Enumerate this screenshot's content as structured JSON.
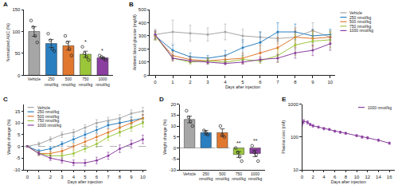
{
  "chart_data": [
    {
      "panel": "A",
      "type": "bar",
      "categories": [
        "Vehicle",
        "250 nmol/kg",
        "500 nmol/kg",
        "750 nmol/kg",
        "1000 nmol/kg"
      ],
      "values": [
        100,
        72.5,
        67.5,
        48,
        40
      ],
      "errors": [
        11,
        9,
        10,
        7,
        2
      ],
      "points": [
        [
          125,
          110,
          90,
          75
        ],
        [
          95,
          80,
          60,
          55
        ],
        [
          90,
          75,
          60,
          45
        ],
        [
          65,
          50,
          42,
          35
        ],
        [
          45,
          42,
          38,
          35
        ]
      ],
      "colors": [
        "#a6a6a6",
        "#2a7fc0",
        "#e0782f",
        "#9cc63a",
        "#8b3fa0"
      ],
      "y_label": "Normalized AUC (%)",
      "ylim": [
        0,
        150
      ],
      "yticks": [
        0,
        50,
        100,
        150
      ],
      "annotations": [
        {
          "category": "750 nmol/kg",
          "text": "*"
        },
        {
          "category": "1000 nmol/kg",
          "text": "*"
        }
      ],
      "grid": false
    },
    {
      "panel": "B",
      "type": "line",
      "x_label": "Days after injection",
      "y_label": "Ambient blood glucose (mg/dl)",
      "x": [
        0,
        1,
        2,
        3,
        4,
        5,
        6,
        7,
        8,
        9,
        10
      ],
      "xlim": [
        -0.3,
        10.3
      ],
      "xticks": [
        0,
        1,
        2,
        3,
        4,
        5,
        6,
        7,
        8,
        9,
        10
      ],
      "ylim": [
        0,
        500
      ],
      "yticks": [
        0,
        100,
        200,
        300,
        400,
        500
      ],
      "legend": "right",
      "marker": "circle",
      "grid": false,
      "series": [
        {
          "name": "Vehicle",
          "color": "#a6a6a6",
          "values": [
            310,
            330,
            320,
            310,
            330,
            300,
            290,
            280,
            290,
            340,
            290
          ],
          "errors": [
            40,
            90,
            60,
            50,
            60,
            50,
            40,
            40,
            50,
            60,
            50
          ]
        },
        {
          "name": "250 nmol/kg",
          "color": "#2a7fc0",
          "values": [
            300,
            190,
            140,
            130,
            150,
            210,
            250,
            330,
            330,
            300,
            310
          ],
          "errors": [
            30,
            40,
            30,
            20,
            40,
            60,
            80,
            70,
            60,
            50,
            40
          ]
        },
        {
          "name": "500 nmol/kg",
          "color": "#e0782f",
          "values": [
            300,
            150,
            120,
            110,
            120,
            130,
            170,
            210,
            290,
            280,
            290
          ],
          "errors": [
            30,
            30,
            20,
            20,
            30,
            40,
            60,
            80,
            70,
            60,
            40
          ]
        },
        {
          "name": "750 nmol/kg",
          "color": "#9cc63a",
          "values": [
            300,
            130,
            100,
            110,
            100,
            120,
            110,
            150,
            230,
            260,
            270
          ],
          "errors": [
            30,
            20,
            15,
            20,
            15,
            25,
            20,
            50,
            80,
            70,
            60
          ]
        },
        {
          "name": "1000 nmol/kg",
          "color": "#8b3fa0",
          "values": [
            310,
            130,
            110,
            100,
            90,
            100,
            120,
            130,
            170,
            190,
            240
          ],
          "errors": [
            30,
            20,
            15,
            15,
            10,
            15,
            20,
            30,
            40,
            40,
            50
          ]
        }
      ]
    },
    {
      "panel": "C",
      "type": "line",
      "x_label": "Days after injection",
      "y_label": "Weight change (%)",
      "x": [
        0,
        1,
        2,
        3,
        4,
        5,
        6,
        7,
        8,
        9,
        10
      ],
      "xlim": [
        -0.3,
        10.3
      ],
      "xticks": [
        0,
        1,
        2,
        3,
        4,
        5,
        6,
        7,
        8,
        9,
        10
      ],
      "ylim": [
        -10,
        18
      ],
      "yticks": [
        -10,
        -5,
        0,
        5,
        10,
        15
      ],
      "reference_line": 0,
      "legend": "upper left",
      "marker": "circle",
      "grid": false,
      "series": [
        {
          "name": "Vehicle",
          "color": "#a6a6a6",
          "values": [
            0,
            1,
            3,
            5,
            6,
            8,
            10,
            11,
            12,
            14,
            15
          ],
          "errors": [
            0.3,
            0.8,
            1,
            1.2,
            1.2,
            1.3,
            1.4,
            1.4,
            1.5,
            1.5,
            1.6
          ]
        },
        {
          "name": "250 nmol/kg",
          "color": "#2a7fc0",
          "values": [
            0,
            -2,
            -1,
            1,
            3,
            5,
            7,
            9,
            10,
            11,
            12
          ],
          "errors": [
            0.3,
            0.8,
            1,
            1,
            1.2,
            1.2,
            1.3,
            1.3,
            1.4,
            1.4,
            1.5
          ]
        },
        {
          "name": "500 nmol/kg",
          "color": "#e0782f",
          "values": [
            0,
            -3,
            -3,
            -2,
            0,
            2,
            4,
            6,
            8,
            10,
            12
          ],
          "errors": [
            0.3,
            0.8,
            1,
            1.2,
            1.2,
            1.3,
            1.3,
            1.4,
            1.5,
            1.5,
            1.6
          ]
        },
        {
          "name": "750 nmol/kg",
          "color": "#9cc63a",
          "values": [
            0,
            -3,
            -4,
            -4,
            -3,
            -1,
            1,
            4,
            6,
            8,
            10
          ],
          "errors": [
            0.3,
            0.9,
            1,
            1.1,
            1.2,
            1.3,
            1.4,
            1.5,
            1.6,
            1.6,
            1.7
          ]
        },
        {
          "name": "1000 nmol/kg",
          "color": "#8b3fa0",
          "values": [
            0,
            -3,
            -5,
            -6,
            -7,
            -7,
            -6,
            -4,
            -1,
            1,
            3
          ],
          "errors": [
            0.3,
            0.8,
            1,
            1.1,
            1.2,
            1.3,
            1.4,
            1.5,
            1.6,
            1.7,
            1.8
          ]
        }
      ]
    },
    {
      "panel": "D",
      "type": "bar",
      "categories": [
        "Vehicle",
        "250 nmol/kg",
        "500 nmol/kg",
        "750 nmol/kg",
        "1000 nmol/kg"
      ],
      "values": [
        13,
        7,
        7,
        -3,
        -2.5
      ],
      "errors": [
        1.5,
        1,
        1.7,
        1.3,
        1.5
      ],
      "points": [
        [
          17,
          14,
          12,
          10
        ],
        [
          8,
          7,
          6
        ],
        [
          10,
          6,
          5
        ],
        [
          0,
          -2,
          -4,
          -6
        ],
        [
          1,
          -2,
          -3,
          -6
        ]
      ],
      "colors": [
        "#a6a6a6",
        "#2a7fc0",
        "#e0782f",
        "#9cc63a",
        "#8b3fa0"
      ],
      "y_label": "Weight change (%)",
      "ylim": [
        -10,
        20
      ],
      "yticks": [
        -10,
        -5,
        0,
        5,
        10,
        15,
        20
      ],
      "reference_line": 0,
      "annotations": [
        {
          "category": "750 nmol/kg",
          "text": "**"
        },
        {
          "category": "1000 nmol/kg",
          "text": "**"
        }
      ],
      "grid": false
    },
    {
      "panel": "E",
      "type": "line",
      "log": "y",
      "x_label": "Days after injection",
      "y_label": "Plasma conc (nM)",
      "x": [
        0,
        0.3,
        1,
        1.5,
        2,
        3,
        4,
        5,
        6,
        7,
        8,
        10,
        11,
        12,
        14,
        16
      ],
      "xlim": [
        0,
        17
      ],
      "xticks": [
        0,
        2,
        4,
        6,
        8,
        10,
        12,
        14,
        16
      ],
      "ylim": [
        10,
        1000
      ],
      "yticks": [
        10,
        100,
        1000
      ],
      "legend": "upper right",
      "marker": "diamond",
      "grid": false,
      "series": [
        {
          "name": "1000 nmol/kg",
          "color": "#8b3fa0",
          "values": [
            250,
            300,
            280,
            240,
            220,
            200,
            180,
            170,
            150,
            140,
            130,
            110,
            100,
            95,
            80,
            65
          ],
          "errors": [
            30,
            40,
            30,
            20,
            20,
            15,
            15,
            10,
            10,
            10,
            10,
            8,
            8,
            8,
            6,
            5
          ]
        }
      ]
    }
  ]
}
